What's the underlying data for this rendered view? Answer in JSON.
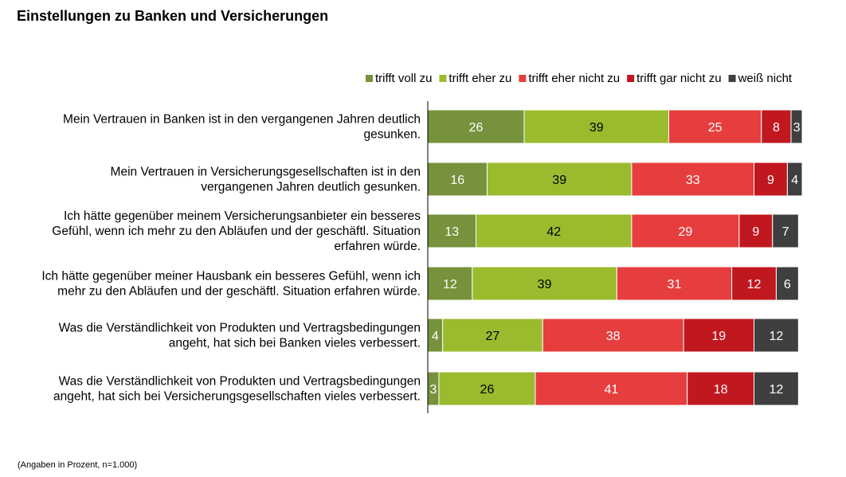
{
  "title": "Einstellungen zu Banken und Versicherungen",
  "footnote": "(Angaben in Prozent, n=1.000)",
  "colors": {
    "trifft_voll_zu": "#76923c",
    "trifft_eher_zu": "#9bbb2e",
    "trifft_eher_nicht_zu": "#e63e3e",
    "trifft_gar_nicht_zu": "#c1171f",
    "weiss_nicht": "#3f3f3f",
    "axis": "#000000",
    "label_light": "#ffffff",
    "label_dark": "#000000"
  },
  "chart_data": {
    "type": "bar",
    "orientation": "horizontal",
    "stacked": true,
    "title": "Einstellungen zu Banken und Versicherungen",
    "legend_position": "top-right",
    "grid": false,
    "unit": "Prozent",
    "categories": [
      [
        "Mein Vertrauen in Banken ist in den vergangenen Jahren deutlich",
        "gesunken."
      ],
      [
        "Mein Vertrauen in Versicherungsgesellschaften ist in den",
        "vergangenen Jahren deutlich gesunken."
      ],
      [
        "Ich hätte gegenüber meinem Versicherungsanbieter ein besseres",
        "Gefühl, wenn ich mehr zu den Abläufen und der geschäftl. Situation",
        "erfahren würde."
      ],
      [
        "Ich hätte gegenüber meiner Hausbank ein besseres Gefühl, wenn ich",
        "mehr zu den Abläufen und der geschäftl. Situation erfahren würde."
      ],
      [
        "Was die Verständlichkeit von Produkten und Vertragsbedingungen",
        "angeht, hat sich bei Banken vieles verbessert."
      ],
      [
        "Was die Verständlichkeit von Produkten und Vertragsbedingungen",
        "angeht, hat sich bei Versicherungsgesellschaften vieles verbessert."
      ]
    ],
    "series": [
      {
        "name": "trifft voll zu",
        "color": "#76923c",
        "label_color": "#ffffff",
        "values": [
          26,
          16,
          13,
          12,
          4,
          3
        ]
      },
      {
        "name": "trifft eher zu",
        "color": "#9bbb2e",
        "label_color": "#000000",
        "values": [
          39,
          39,
          42,
          39,
          27,
          26
        ]
      },
      {
        "name": "trifft eher nicht zu",
        "color": "#e63e3e",
        "label_color": "#ffffff",
        "values": [
          25,
          33,
          29,
          31,
          38,
          41
        ]
      },
      {
        "name": "trifft gar nicht zu",
        "color": "#c1171f",
        "label_color": "#ffffff",
        "values": [
          8,
          9,
          9,
          12,
          19,
          18
        ]
      },
      {
        "name": "weiß nicht",
        "color": "#3f3f3f",
        "label_color": "#ffffff",
        "values": [
          3,
          4,
          7,
          6,
          12,
          12
        ]
      }
    ]
  }
}
